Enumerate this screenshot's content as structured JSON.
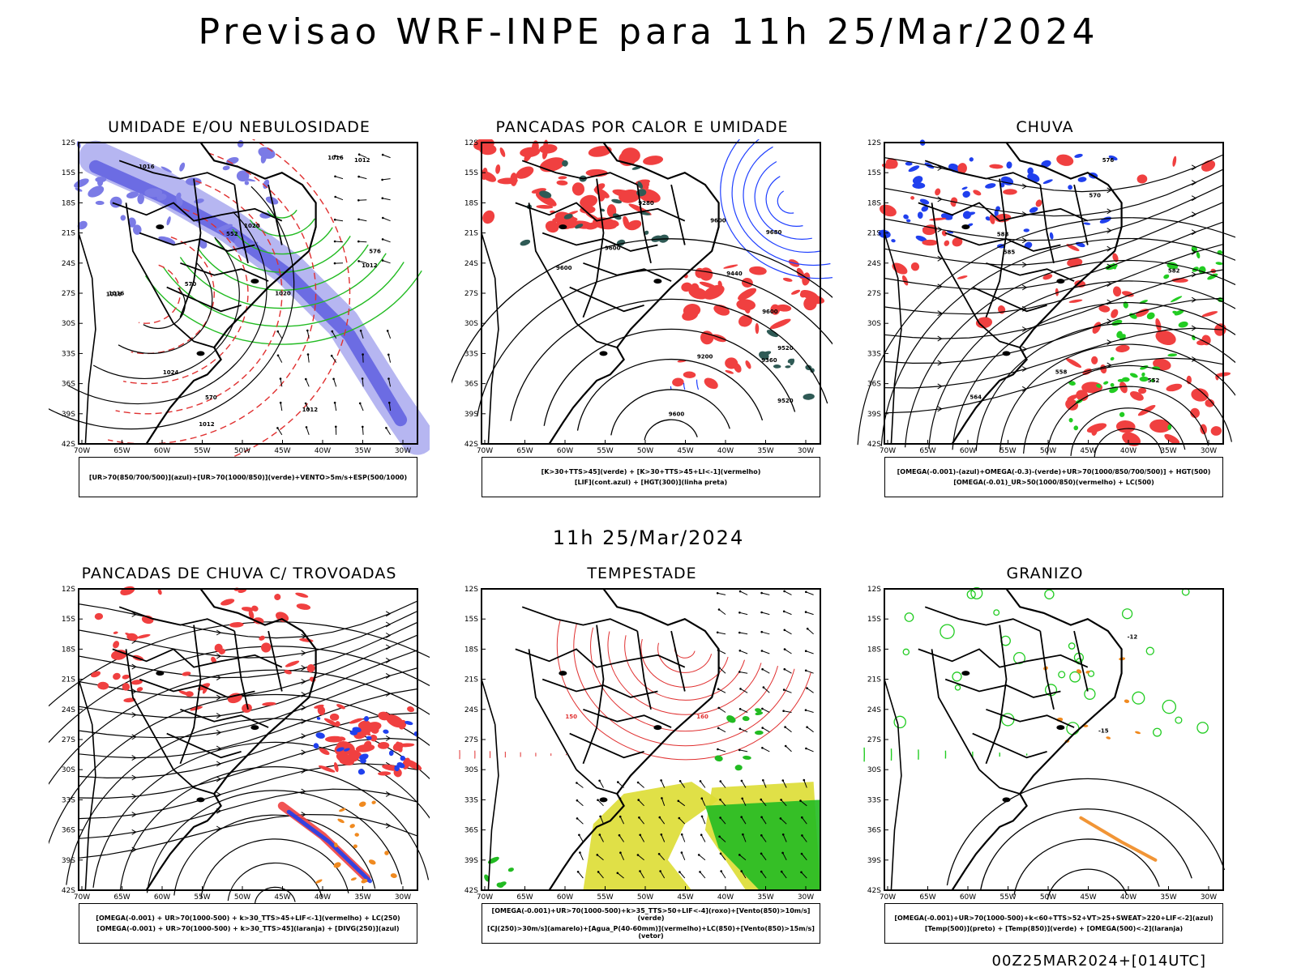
{
  "header": {
    "title": "Previsao WRF-INPE  para 11h 25/Mar/2024"
  },
  "middle": {
    "date_label": "11h 25/Mar/2024"
  },
  "footer": {
    "run_label": "00Z25MAR2024+[014UTC]"
  },
  "axis": {
    "lat_labels": [
      "12S",
      "15S",
      "18S",
      "21S",
      "24S",
      "27S",
      "30S",
      "33S",
      "36S",
      "39S",
      "42S"
    ],
    "lon_labels": [
      "70W",
      "65W",
      "60W",
      "55W",
      "50W",
      "45W",
      "40W",
      "35W",
      "30W"
    ]
  },
  "panels": [
    {
      "title": "UMIDADE E/OU NEBULOSIDADE",
      "legend": [
        "[UR>70(850/700/500)](azul)+[UR>70(1000/850)](verde)+VENTO>5m/s+ESP(500/1000)"
      ],
      "labels": [
        "1012",
        "1012",
        "1012",
        "1016",
        "1016",
        "1016",
        "1020",
        "1020",
        "1024",
        "1016",
        "1012",
        "576",
        "570",
        "570",
        "552"
      ]
    },
    {
      "title": "PANCADAS POR CALOR E UMIDADE",
      "legend": [
        "[K>30+TTS>45](verde) + [K>30+TTS>45+LI<-1](vermelho)",
        "[LIF](cont.azul) + [HGT(300)](linha preta)"
      ],
      "labels": [
        "9600",
        "9680",
        "9600",
        "9600",
        "9600",
        "9520",
        "9440",
        "9360",
        "9280",
        "9200",
        "9600",
        "9520"
      ]
    },
    {
      "title": "CHUVA",
      "legend": [
        "[OMEGA(-0.001)-(azul)+OMEGA(-0.3)-(verde)+UR>70(1000/850/700/500)] + HGT(500)",
        "[OMEGA(-0.01)_UR>50(1000/850)(vermelho) + LC(500)"
      ],
      "labels": [
        "588",
        "576",
        "570",
        "564",
        "558",
        "552",
        "582",
        "585"
      ]
    },
    {
      "title": "PANCADAS DE CHUVA C/ TROVOADAS",
      "legend": [
        "[OMEGA(-0.001) + UR>70(1000-500) + k>30_TTS>45+LIF<-1](vermelho) + LC(250)",
        "[OMEGA(-0.001) + UR>70(1000-500) + k>30_TTS>45](laranja) + [DIVG(250)](azul)"
      ],
      "labels": []
    },
    {
      "title": "TEMPESTADE",
      "legend": [
        "[OMEGA(-0.001)+UR>70(1000-500)+k>35_TTS>50+LIF<-4](roxo)+[Vento(850)>10m/s](verde)",
        "[CJ(250)>30m/s](amarelo)+[Agua_P(40-60mm)](vermelho)+LC(850)+[Vento(850)>15m/s](vetor)"
      ],
      "labels": [
        "150",
        "160"
      ]
    },
    {
      "title": "GRANIZO",
      "legend": [
        "[OMEGA(-0.001)+UR>70(1000-500)+k<60+TTS>52+VT>25+SWEAT>220+LIF<-2](azul)",
        "[Temp(500)](preto) + [Temp(850)](verde) + [OMEGA(500)<-2](laranja)"
      ],
      "labels": [
        "-12",
        "-15"
      ]
    }
  ]
}
